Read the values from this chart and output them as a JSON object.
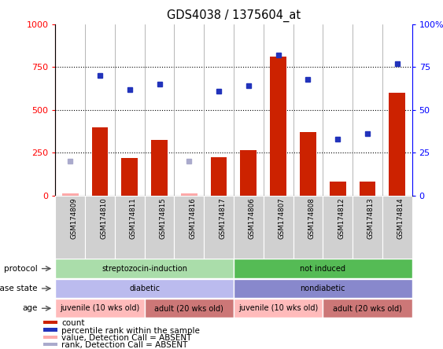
{
  "title": "GDS4038 / 1375604_at",
  "samples": [
    "GSM174809",
    "GSM174810",
    "GSM174811",
    "GSM174815",
    "GSM174816",
    "GSM174817",
    "GSM174806",
    "GSM174807",
    "GSM174808",
    "GSM174812",
    "GSM174813",
    "GSM174814"
  ],
  "counts": [
    10,
    400,
    220,
    325,
    10,
    225,
    265,
    810,
    370,
    80,
    80,
    600
  ],
  "counts_absent": [
    true,
    false,
    false,
    false,
    true,
    false,
    false,
    false,
    false,
    false,
    false,
    false
  ],
  "percentile_ranks": [
    20,
    70,
    62,
    65,
    20,
    61,
    64,
    82,
    68,
    33,
    36,
    77
  ],
  "percentile_absent": [
    true,
    false,
    false,
    false,
    true,
    false,
    false,
    false,
    false,
    false,
    false,
    false
  ],
  "ylim_left": [
    0,
    1000
  ],
  "ylim_right": [
    0,
    100
  ],
  "yticks_left": [
    0,
    250,
    500,
    750,
    1000
  ],
  "yticks_right": [
    0,
    25,
    50,
    75,
    100
  ],
  "bar_color": "#cc2200",
  "bar_absent_color": "#ffaaaa",
  "marker_color": "#2233bb",
  "marker_absent_color": "#aaaacc",
  "bg_color": "#ffffff",
  "protocol_groups": [
    {
      "label": "streptozocin-induction",
      "start": 0,
      "end": 6,
      "color": "#aaddaa"
    },
    {
      "label": "not induced",
      "start": 6,
      "end": 12,
      "color": "#55bb55"
    }
  ],
  "disease_groups": [
    {
      "label": "diabetic",
      "start": 0,
      "end": 6,
      "color": "#bbbbee"
    },
    {
      "label": "nondiabetic",
      "start": 6,
      "end": 12,
      "color": "#8888cc"
    }
  ],
  "age_groups": [
    {
      "label": "juvenile (10 wks old)",
      "start": 0,
      "end": 3,
      "color": "#ffbbbb"
    },
    {
      "label": "adult (20 wks old)",
      "start": 3,
      "end": 6,
      "color": "#cc7777"
    },
    {
      "label": "juvenile (10 wks old)",
      "start": 6,
      "end": 9,
      "color": "#ffbbbb"
    },
    {
      "label": "adult (20 wks old)",
      "start": 9,
      "end": 12,
      "color": "#cc7777"
    }
  ],
  "row_labels": [
    "protocol",
    "disease state",
    "age"
  ],
  "legend_items": [
    {
      "label": "count",
      "color": "#cc2200"
    },
    {
      "label": "percentile rank within the sample",
      "color": "#2233bb"
    },
    {
      "label": "value, Detection Call = ABSENT",
      "color": "#ffaaaa"
    },
    {
      "label": "rank, Detection Call = ABSENT",
      "color": "#aaaacc"
    }
  ]
}
